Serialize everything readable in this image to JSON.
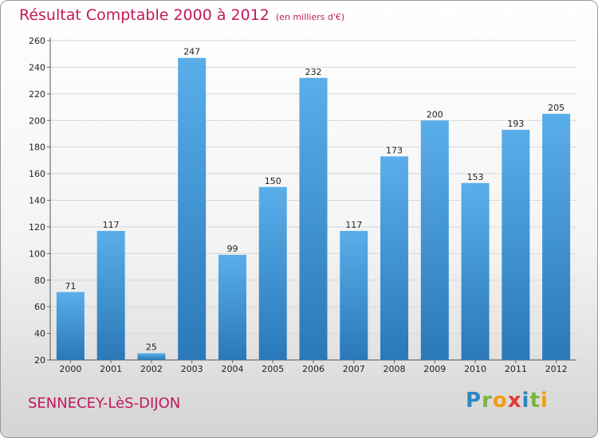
{
  "header": {
    "title": "Résultat Comptable 2000 à 2012",
    "subtitle": "(en milliers d'€)"
  },
  "footer": {
    "commune": "SENNECEY-LèS-DIJON",
    "brand_letters": [
      {
        "char": "P",
        "color": "#2e86c1"
      },
      {
        "char": "r",
        "color": "#7cb342"
      },
      {
        "char": "o",
        "color": "#f39c12"
      },
      {
        "char": "x",
        "color": "#e53935"
      },
      {
        "char": "i",
        "color": "#2e86c1"
      },
      {
        "char": "t",
        "color": "#7cb342"
      },
      {
        "char": "i",
        "color": "#f39c12"
      }
    ]
  },
  "colors": {
    "bar_top": "#5aaeea",
    "bar_bottom": "#2a78b8",
    "accent": "#c2185b"
  },
  "chart_data": {
    "type": "bar",
    "title": "Résultat Comptable 2000 à 2012",
    "subtitle": "(en milliers d'€)",
    "categories": [
      "2000",
      "2001",
      "2002",
      "2003",
      "2004",
      "2005",
      "2006",
      "2007",
      "2008",
      "2009",
      "2010",
      "2011",
      "2012"
    ],
    "values": [
      71,
      117,
      25,
      247,
      99,
      150,
      232,
      117,
      173,
      200,
      153,
      193,
      205
    ],
    "ylim": [
      20,
      260
    ],
    "yticks": [
      20,
      40,
      60,
      80,
      100,
      120,
      140,
      160,
      180,
      200,
      220,
      240,
      260
    ],
    "grid": true,
    "xlabel": "",
    "ylabel": ""
  }
}
